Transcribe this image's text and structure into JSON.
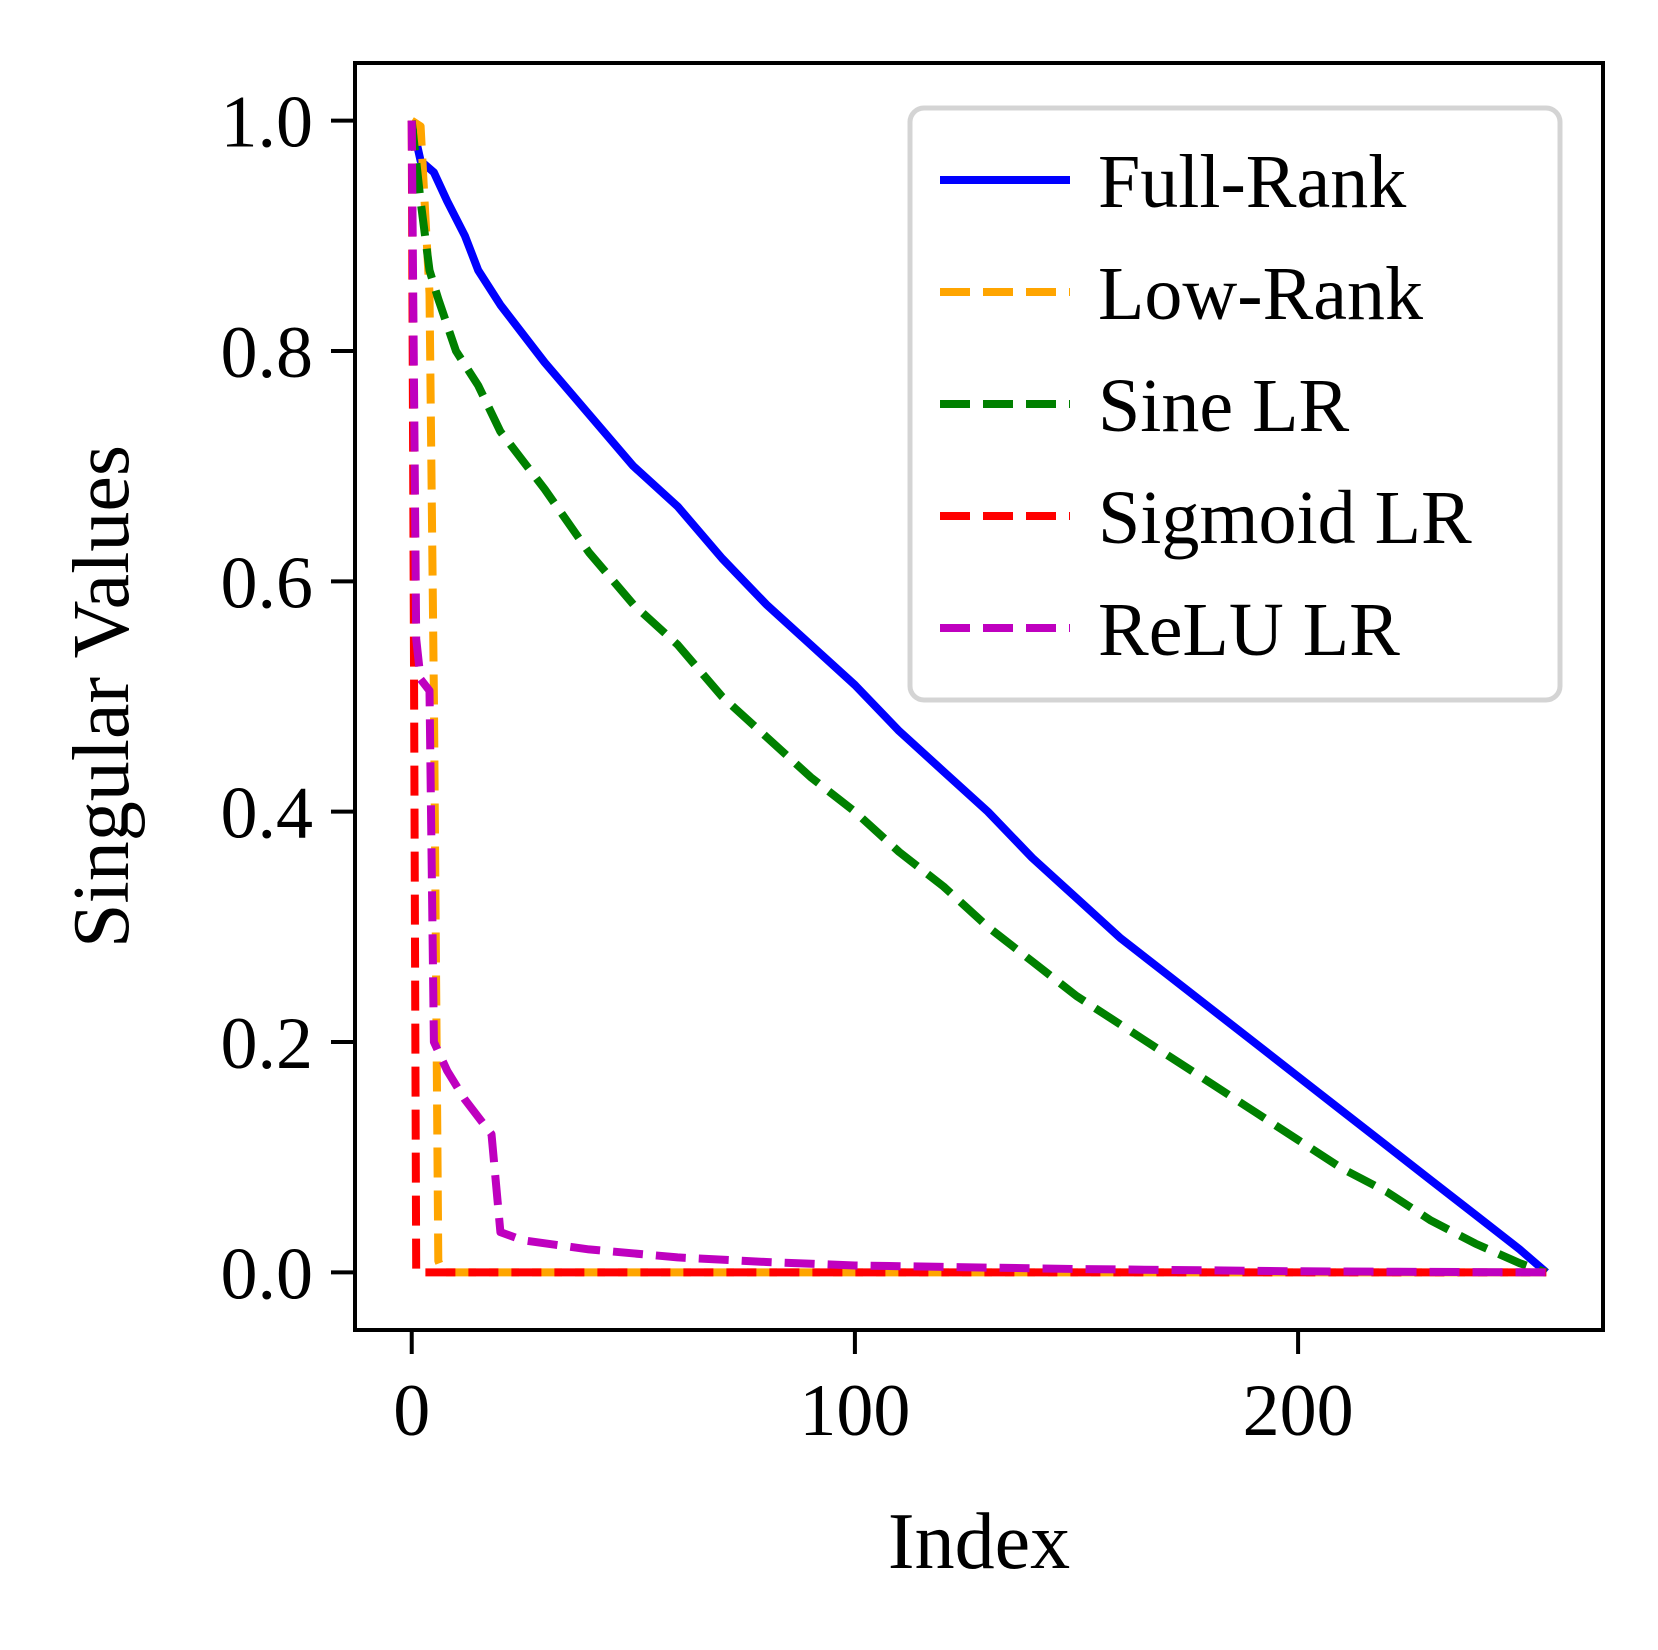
{
  "chart_data": {
    "type": "line",
    "title": "",
    "xlabel": "Index",
    "ylabel": "Singular Values",
    "xlim": [
      -12.8,
      268.8
    ],
    "ylim": [
      -0.05,
      1.05
    ],
    "xticks": [
      0,
      100,
      200
    ],
    "xtick_labels": [
      "0",
      "100",
      "200"
    ],
    "yticks": [
      0.0,
      0.2,
      0.4,
      0.6,
      0.8,
      1.0
    ],
    "ytick_labels": [
      "0.0",
      "0.2",
      "0.4",
      "0.6",
      "0.8",
      "1.0"
    ],
    "grid": false,
    "legend_position": "top-right",
    "series": [
      {
        "name": "Full-Rank",
        "color": "#0000ff",
        "style": "solid",
        "points": [
          [
            0,
            1.0
          ],
          [
            2,
            0.965
          ],
          [
            5,
            0.955
          ],
          [
            8,
            0.93
          ],
          [
            12,
            0.9
          ],
          [
            15,
            0.87
          ],
          [
            20,
            0.84
          ],
          [
            30,
            0.79
          ],
          [
            40,
            0.745
          ],
          [
            50,
            0.7
          ],
          [
            60,
            0.665
          ],
          [
            70,
            0.62
          ],
          [
            80,
            0.58
          ],
          [
            90,
            0.545
          ],
          [
            100,
            0.51
          ],
          [
            110,
            0.47
          ],
          [
            120,
            0.435
          ],
          [
            130,
            0.4
          ],
          [
            140,
            0.36
          ],
          [
            150,
            0.325
          ],
          [
            160,
            0.29
          ],
          [
            170,
            0.26
          ],
          [
            180,
            0.23
          ],
          [
            190,
            0.2
          ],
          [
            200,
            0.17
          ],
          [
            210,
            0.14
          ],
          [
            220,
            0.11
          ],
          [
            230,
            0.08
          ],
          [
            240,
            0.05
          ],
          [
            250,
            0.02
          ],
          [
            256,
            0.0
          ]
        ]
      },
      {
        "name": "Low-Rank",
        "color": "#ffa500",
        "style": "dashed",
        "points": [
          [
            0,
            1.0
          ],
          [
            2,
            0.995
          ],
          [
            4,
            0.85
          ],
          [
            5,
            0.5
          ],
          [
            6,
            0.01
          ],
          [
            7,
            0.0
          ],
          [
            256,
            0.0
          ]
        ]
      },
      {
        "name": "Sine LR",
        "color": "#008000",
        "style": "dashed",
        "points": [
          [
            0,
            1.0
          ],
          [
            2,
            0.93
          ],
          [
            4,
            0.87
          ],
          [
            6,
            0.845
          ],
          [
            10,
            0.8
          ],
          [
            15,
            0.77
          ],
          [
            20,
            0.73
          ],
          [
            30,
            0.68
          ],
          [
            40,
            0.625
          ],
          [
            50,
            0.58
          ],
          [
            60,
            0.545
          ],
          [
            70,
            0.5
          ],
          [
            80,
            0.465
          ],
          [
            90,
            0.43
          ],
          [
            100,
            0.4
          ],
          [
            110,
            0.365
          ],
          [
            120,
            0.335
          ],
          [
            130,
            0.3
          ],
          [
            140,
            0.27
          ],
          [
            150,
            0.24
          ],
          [
            160,
            0.215
          ],
          [
            170,
            0.19
          ],
          [
            180,
            0.165
          ],
          [
            190,
            0.14
          ],
          [
            200,
            0.115
          ],
          [
            210,
            0.09
          ],
          [
            220,
            0.07
          ],
          [
            230,
            0.045
          ],
          [
            240,
            0.025
          ],
          [
            250,
            0.008
          ],
          [
            256,
            0.0
          ]
        ]
      },
      {
        "name": "Sigmoid LR",
        "color": "#ff0000",
        "style": "dashed",
        "points": [
          [
            0,
            1.0
          ],
          [
            0.5,
            0.55
          ],
          [
            1,
            0.0
          ],
          [
            256,
            0.0
          ]
        ]
      },
      {
        "name": "ReLU LR",
        "color": "#bf00bf",
        "style": "dashed",
        "points": [
          [
            0,
            1.0
          ],
          [
            1,
            0.55
          ],
          [
            2,
            0.515
          ],
          [
            4,
            0.505
          ],
          [
            5,
            0.2
          ],
          [
            8,
            0.175
          ],
          [
            12,
            0.15
          ],
          [
            18,
            0.12
          ],
          [
            20,
            0.035
          ],
          [
            25,
            0.028
          ],
          [
            40,
            0.02
          ],
          [
            60,
            0.013
          ],
          [
            80,
            0.009
          ],
          [
            100,
            0.006
          ],
          [
            150,
            0.003
          ],
          [
            200,
            0.001
          ],
          [
            256,
            0.0
          ]
        ]
      }
    ]
  }
}
